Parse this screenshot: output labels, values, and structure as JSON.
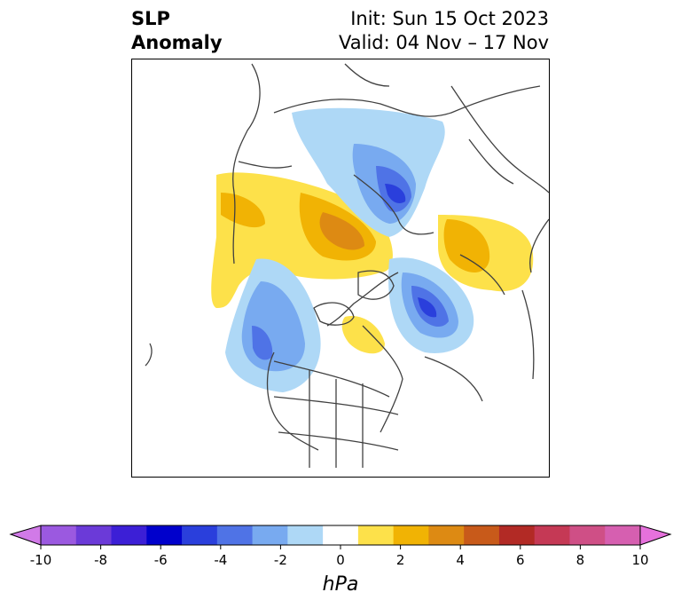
{
  "title": {
    "left_line1": "SLP",
    "left_line2": "Anomaly",
    "init": "Init: Sun 15 Oct 2023",
    "valid": "Valid: 04 Nov – 17 Nov"
  },
  "colorbar": {
    "unit_label": "hPa",
    "tick_labels": [
      "-10",
      "-8",
      "-6",
      "-4",
      "-2",
      "0",
      "2",
      "4",
      "6",
      "8",
      "10"
    ],
    "colors": [
      "#d17ae8",
      "#9b59e0",
      "#6b3ad8",
      "#3c1fd6",
      "#0000cc",
      "#2a3fdc",
      "#4f73e6",
      "#78aaf0",
      "#aed8f6",
      "#ffffff",
      "#fde14a",
      "#f1b304",
      "#dd8a13",
      "#c85a1a",
      "#b22a25",
      "#c53955",
      "#cf4f86",
      "#d65fb0",
      "#e671dc"
    ],
    "range": [
      -10,
      10
    ],
    "extends": "both"
  },
  "map": {
    "projection": "polar-stereographic",
    "region": "Northern Hemisphere high latitudes",
    "anomaly_centers": [
      {
        "sign": "negative",
        "region": "Siberia",
        "peak_hPa": -5
      },
      {
        "sign": "positive",
        "region": "Kara Sea / Arctic Russia",
        "peak_hPa": 4
      },
      {
        "sign": "positive",
        "region": "Europe",
        "peak_hPa": 2
      },
      {
        "sign": "negative",
        "region": "North Atlantic / Greenland",
        "peak_hPa": -5
      },
      {
        "sign": "negative",
        "region": "Gulf of Alaska / Western Canada",
        "peak_hPa": -4
      },
      {
        "sign": "positive",
        "region": "Hudson Bay",
        "peak_hPa": 2
      }
    ]
  }
}
